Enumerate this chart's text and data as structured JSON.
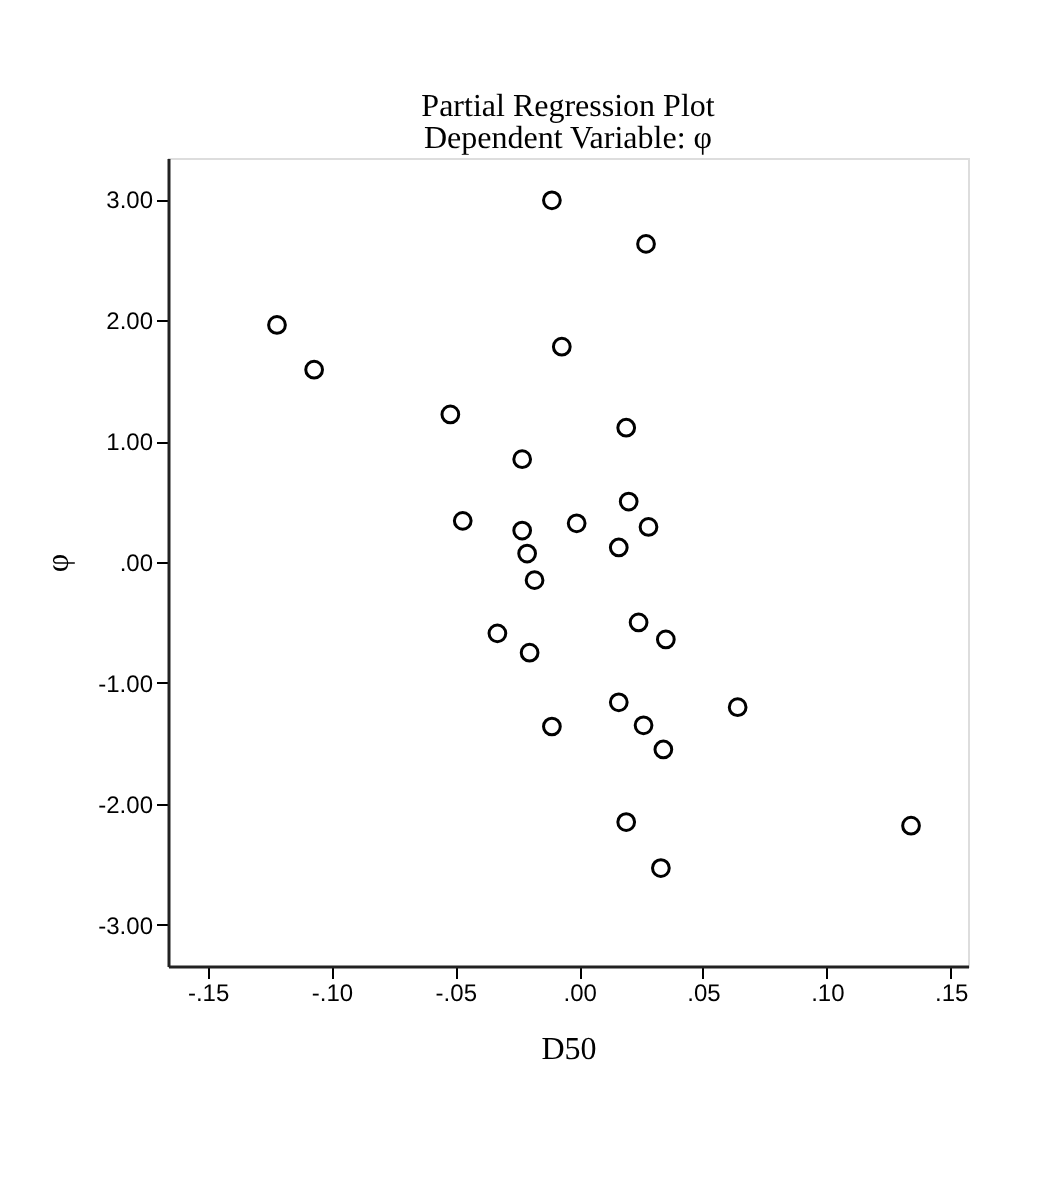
{
  "chart_data": {
    "type": "scatter",
    "title": "Partial Regression Plot",
    "subtitle": "Dependent Variable: φ",
    "xlabel": "D50",
    "ylabel": "φ",
    "x": [
      -0.011,
      0.027,
      -0.122,
      -0.107,
      -0.007,
      -0.052,
      0.019,
      -0.023,
      -0.047,
      -0.023,
      -0.021,
      -0.018,
      -0.001,
      0.02,
      0.028,
      0.016,
      -0.033,
      -0.02,
      0.024,
      0.035,
      0.016,
      0.064,
      -0.011,
      0.026,
      0.034,
      0.019,
      0.134,
      0.033
    ],
    "values": [
      2.99,
      2.63,
      1.96,
      1.59,
      1.78,
      1.22,
      1.11,
      0.85,
      0.34,
      0.26,
      0.07,
      -0.15,
      0.32,
      0.5,
      0.29,
      0.12,
      -0.59,
      -0.75,
      -0.5,
      -0.64,
      -1.16,
      -1.2,
      -1.36,
      -1.35,
      -1.55,
      -2.15,
      -2.18,
      -2.53
    ],
    "color": "#000000",
    "marker": "circle",
    "grid": false,
    "xlim": [
      -0.166,
      0.157
    ],
    "ylim": [
      -3.34,
      3.34
    ],
    "xticks": [
      {
        "value": -0.15,
        "label": "-.15"
      },
      {
        "value": -0.1,
        "label": "-.10"
      },
      {
        "value": -0.05,
        "label": "-.05"
      },
      {
        "value": 0,
        "label": ".00"
      },
      {
        "value": 0.05,
        "label": ".05"
      },
      {
        "value": 0.1,
        "label": ".10"
      },
      {
        "value": 0.15,
        "label": ".15"
      }
    ],
    "yticks": [
      {
        "value": -3,
        "label": "-3.00"
      },
      {
        "value": -2,
        "label": "-2.00"
      },
      {
        "value": -1,
        "label": "-1.00"
      },
      {
        "value": 0,
        "label": ".00"
      },
      {
        "value": 1,
        "label": "1.00"
      },
      {
        "value": 2,
        "label": "2.00"
      },
      {
        "value": 3,
        "label": "3.00"
      }
    ]
  }
}
